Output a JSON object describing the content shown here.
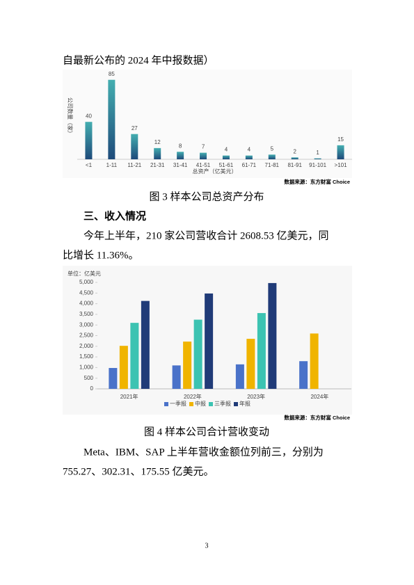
{
  "text_top": "自最新公布的 2024 年中报数据）",
  "figure3_source": "数据来源：东方财富 Choice",
  "figure3_caption": "图 3  样本公司总资产分布",
  "section_heading": "三、收入情况",
  "paragraph1": [
    "今年上半年，210 家公司营收合计 2608.53 亿美元，同",
    "比增长 11.36%。"
  ],
  "figure4_source": "数据来源：东方财富 Choice",
  "figure4_caption": "图 4  样本公司合计营收变动",
  "paragraph2": [
    "Meta、IBM、SAP 上半年营收金额位列前三，分别为",
    "755.27、302.31、175.55 亿美元。"
  ],
  "page_number": "3",
  "chart_data": [
    {
      "type": "bar",
      "ylabel": "公司数量（家）",
      "xlabel": "总资产（亿美元）",
      "categories": [
        "<1",
        "1-11",
        "11-21",
        "21-31",
        "31-41",
        "41-51",
        "51-61",
        "61-71",
        "71-81",
        "81-91",
        "91-101",
        ">101"
      ],
      "values": [
        40,
        85,
        27,
        12,
        8,
        7,
        4,
        4,
        5,
        2,
        1,
        15
      ],
      "ylim": [
        0,
        90
      ],
      "gradient": [
        "#44aeb0",
        "#1e4a7a"
      ]
    },
    {
      "type": "grouped_bar",
      "unit": "单位：亿美元",
      "categories": [
        "2021年",
        "2022年",
        "2023年",
        "2024年"
      ],
      "series": [
        {
          "name": "一季报",
          "color": "#4a72c9",
          "values": [
            980,
            1100,
            1150,
            1300
          ]
        },
        {
          "name": "中报",
          "color": "#f0b400",
          "values": [
            2020,
            2220,
            2350,
            2600
          ]
        },
        {
          "name": "三季报",
          "color": "#3cc3b2",
          "values": [
            3100,
            3250,
            3560,
            null
          ]
        },
        {
          "name": "年报",
          "color": "#203b78",
          "values": [
            4130,
            4480,
            4970,
            null
          ]
        }
      ],
      "ylim": [
        0,
        5000
      ],
      "yticks": [
        0,
        500,
        {
          "value": 1000,
          "label": "1,000"
        },
        {
          "value": 1500,
          "label": "1,500"
        },
        {
          "value": 2000,
          "label": "2,000"
        },
        {
          "value": 2500,
          "label": "2,500"
        },
        {
          "value": 3000,
          "label": "3,000"
        },
        {
          "value": 3500,
          "label": "3,500"
        },
        {
          "value": 4000,
          "label": "4,000"
        },
        {
          "value": 4500,
          "label": "4,500"
        },
        {
          "value": 5000,
          "label": "5,000"
        }
      ],
      "grid": false,
      "legend": "bottom"
    }
  ]
}
